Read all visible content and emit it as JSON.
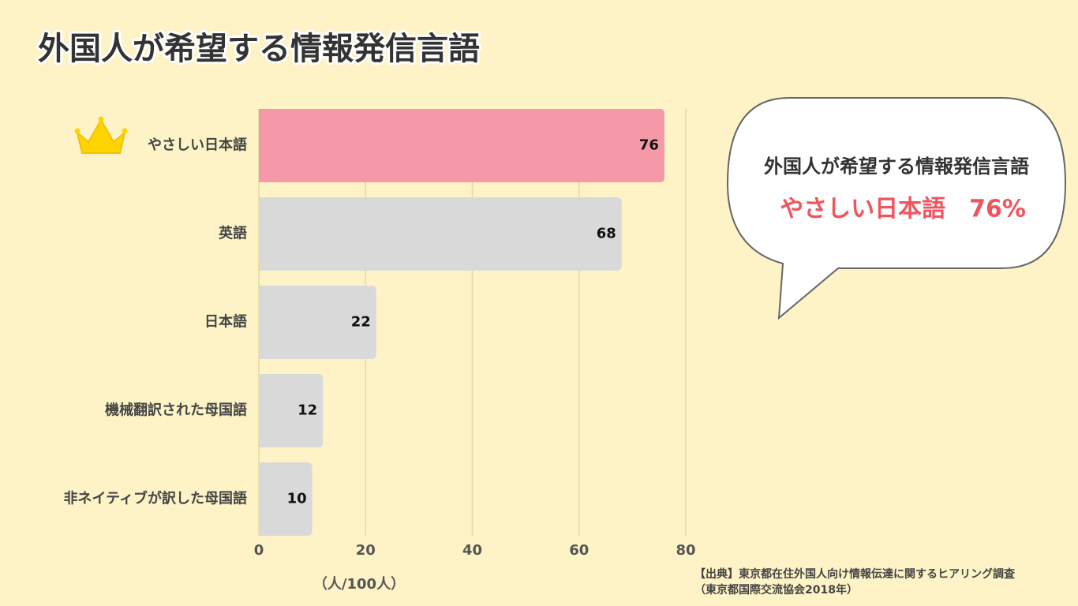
{
  "chart_data": {
    "type": "bar",
    "orientation": "horizontal",
    "title": "外国人が希望する情報発信言語",
    "categories": [
      "やさしい日本語",
      "英語",
      "日本語",
      "機械翻訳された母国語",
      "非ネイティブが訳した母国語"
    ],
    "values": [
      76,
      68,
      22,
      12,
      10
    ],
    "colors": [
      "#f598a8",
      "#d9d9d9",
      "#d9d9d9",
      "#d9d9d9",
      "#d9d9d9"
    ],
    "xlim": [
      0,
      80
    ],
    "xticks": [
      0,
      20,
      40,
      60,
      80
    ],
    "grid": true,
    "xlabel": "（人/100人）",
    "callout": {
      "title": "外国人が希望する情報発信言語",
      "highlight": "やさしい日本語　76%"
    },
    "source": [
      "【出典】東京都在住外国人向け情報伝達に関するヒアリング調査",
      "（東京都国際交流協会2018年）"
    ]
  }
}
